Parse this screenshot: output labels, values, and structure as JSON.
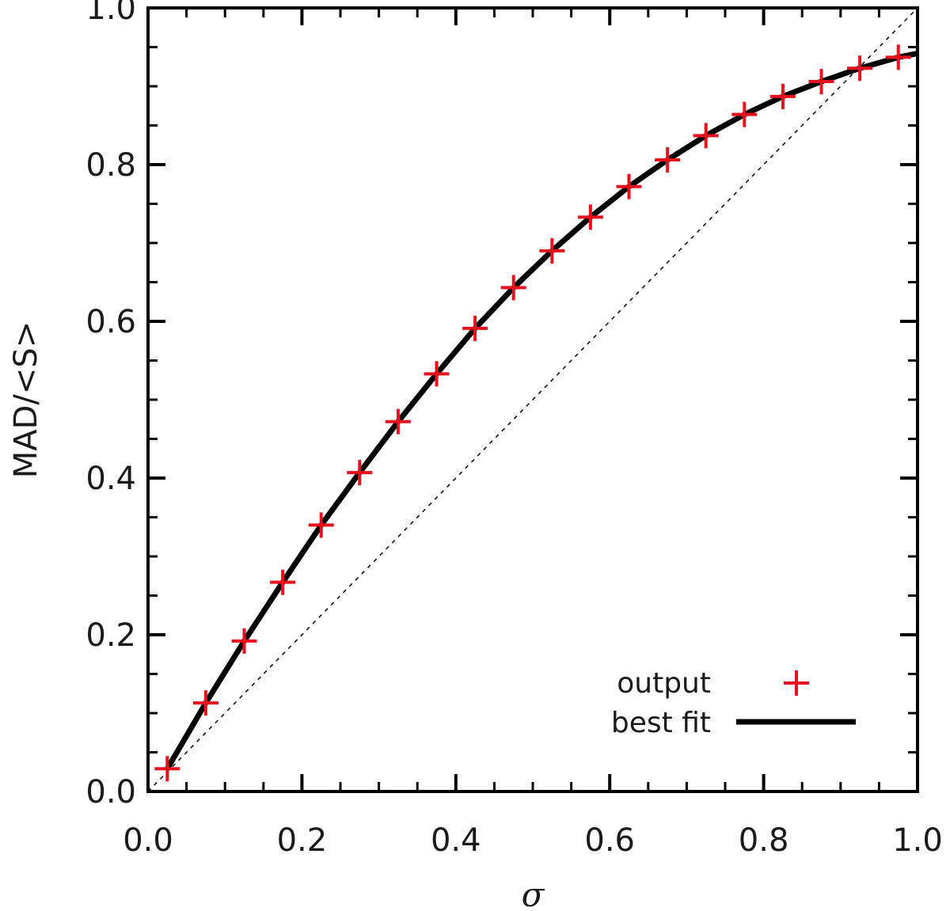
{
  "chart_data": {
    "type": "scatter",
    "xlabel": "σ",
    "ylabel": "MAD/<S>",
    "xlim": [
      0.0,
      1.0
    ],
    "ylim": [
      0.0,
      1.0
    ],
    "x_ticks": [
      "0.0",
      "0.2",
      "0.4",
      "0.6",
      "0.8",
      "1.0"
    ],
    "y_ticks": [
      "0.0",
      "0.2",
      "0.4",
      "0.6",
      "0.8",
      "1.0"
    ],
    "grid": false,
    "legend_position": "bottom-right",
    "series": [
      {
        "name": "output",
        "kind": "markers",
        "marker": "plus",
        "color": "#e8101c",
        "x": [
          0.025,
          0.075,
          0.125,
          0.175,
          0.225,
          0.275,
          0.325,
          0.375,
          0.425,
          0.475,
          0.525,
          0.575,
          0.625,
          0.675,
          0.725,
          0.775,
          0.825,
          0.875,
          0.925,
          0.975
        ],
        "y": [
          0.029,
          0.113,
          0.192,
          0.267,
          0.34,
          0.407,
          0.472,
          0.533,
          0.591,
          0.643,
          0.69,
          0.733,
          0.772,
          0.806,
          0.837,
          0.864,
          0.887,
          0.906,
          0.923,
          0.937
        ]
      },
      {
        "name": "best fit",
        "kind": "line",
        "color": "#000000",
        "x": [
          0.025,
          0.075,
          0.125,
          0.175,
          0.225,
          0.275,
          0.325,
          0.375,
          0.425,
          0.475,
          0.525,
          0.575,
          0.625,
          0.675,
          0.725,
          0.775,
          0.825,
          0.875,
          0.925,
          0.975,
          1.0
        ],
        "y": [
          0.029,
          0.113,
          0.192,
          0.267,
          0.34,
          0.407,
          0.472,
          0.533,
          0.591,
          0.643,
          0.69,
          0.733,
          0.772,
          0.806,
          0.837,
          0.864,
          0.887,
          0.906,
          0.923,
          0.937,
          0.942
        ]
      },
      {
        "kind": "reference-line",
        "style": "dashed",
        "color": "#000000",
        "x": [
          0.0,
          1.0
        ],
        "y": [
          0.0,
          1.0
        ]
      }
    ]
  }
}
